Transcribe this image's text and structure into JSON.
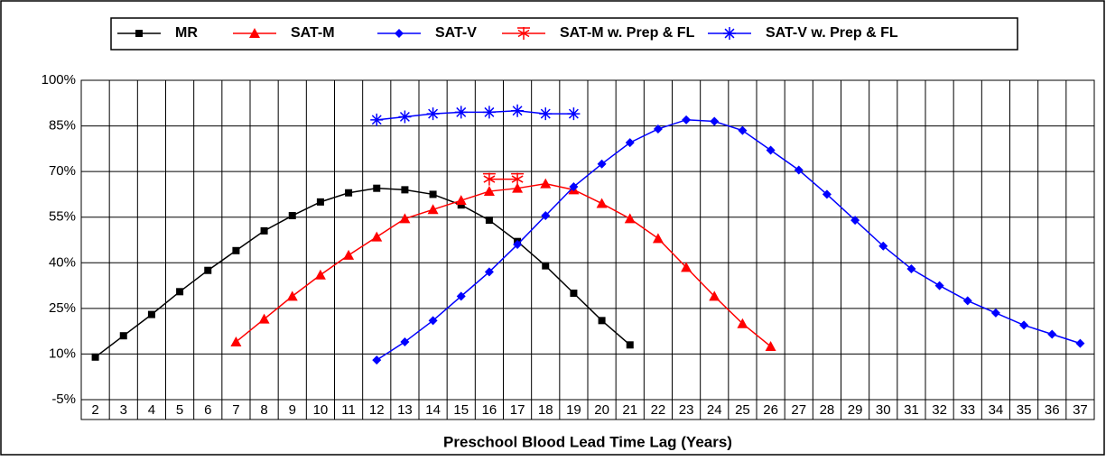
{
  "chart_data": {
    "type": "line",
    "x_label": "Preschool Blood Lead Time Lag (Years)",
    "categories": [
      2,
      3,
      4,
      5,
      6,
      7,
      8,
      9,
      10,
      11,
      12,
      13,
      14,
      15,
      16,
      17,
      18,
      19,
      20,
      21,
      22,
      23,
      24,
      25,
      26,
      27,
      28,
      29,
      30,
      31,
      32,
      33,
      34,
      35,
      36,
      37
    ],
    "series": [
      {
        "name": "MR",
        "color": "#000000",
        "marker": "square",
        "values": [
          9,
          16,
          23,
          30.5,
          37.5,
          44,
          50.5,
          55.5,
          60,
          63,
          64.5,
          64,
          62.5,
          59,
          54,
          47,
          39,
          30,
          21,
          13,
          null,
          null,
          null,
          null,
          null,
          null,
          null,
          null,
          null,
          null,
          null,
          null,
          null,
          null,
          null,
          null
        ]
      },
      {
        "name": "SAT-M",
        "color": "#ff0000",
        "marker": "triangle",
        "values": [
          null,
          null,
          null,
          null,
          null,
          14,
          21.5,
          29,
          36,
          42.5,
          48.5,
          54.5,
          57.5,
          60.5,
          63.5,
          64.5,
          66,
          64,
          59.5,
          54.5,
          48,
          38.5,
          29,
          20,
          12.5,
          null,
          null,
          null,
          null,
          null,
          null,
          null,
          null,
          null,
          null,
          null
        ]
      },
      {
        "name": "SAT-V",
        "color": "#0000ff",
        "marker": "diamond",
        "values": [
          null,
          null,
          null,
          null,
          null,
          null,
          null,
          null,
          null,
          null,
          8,
          14,
          21,
          29,
          37,
          46,
          55.5,
          65,
          72.5,
          79.5,
          84,
          87,
          86.5,
          83.5,
          77,
          70.5,
          62.5,
          54,
          45.5,
          38,
          32.5,
          27.5,
          23.5,
          19.5,
          16.5,
          13.5
        ]
      },
      {
        "name": "SAT-M w. Prep & FL",
        "color": "#ff0000",
        "marker": "star6",
        "values": [
          null,
          null,
          null,
          null,
          null,
          null,
          null,
          null,
          null,
          null,
          null,
          null,
          null,
          null,
          67.5,
          67.5,
          null,
          null,
          null,
          null,
          null,
          null,
          null,
          null,
          null,
          null,
          null,
          null,
          null,
          null,
          null,
          null,
          null,
          null,
          null,
          null
        ]
      },
      {
        "name": "SAT-V w. Prep & FL",
        "color": "#0000ff",
        "marker": "star8",
        "values": [
          null,
          null,
          null,
          null,
          null,
          null,
          null,
          null,
          null,
          null,
          87,
          88,
          89,
          89.5,
          89.5,
          90,
          89,
          89,
          null,
          null,
          null,
          null,
          null,
          null,
          null,
          null,
          null,
          null,
          null,
          null,
          null,
          null,
          null,
          null,
          null,
          null
        ]
      }
    ],
    "ylim": [
      -5,
      100
    ],
    "yticks": [
      {
        "value": -5,
        "label": "-5%"
      },
      {
        "value": 10,
        "label": "10%"
      },
      {
        "value": 25,
        "label": "25%"
      },
      {
        "value": 40,
        "label": "40%"
      },
      {
        "value": 55,
        "label": "55%"
      },
      {
        "value": 70,
        "label": "70%"
      },
      {
        "value": 85,
        "label": "85%"
      },
      {
        "value": 100,
        "label": "100%"
      }
    ],
    "grid": true,
    "legend": "top"
  }
}
